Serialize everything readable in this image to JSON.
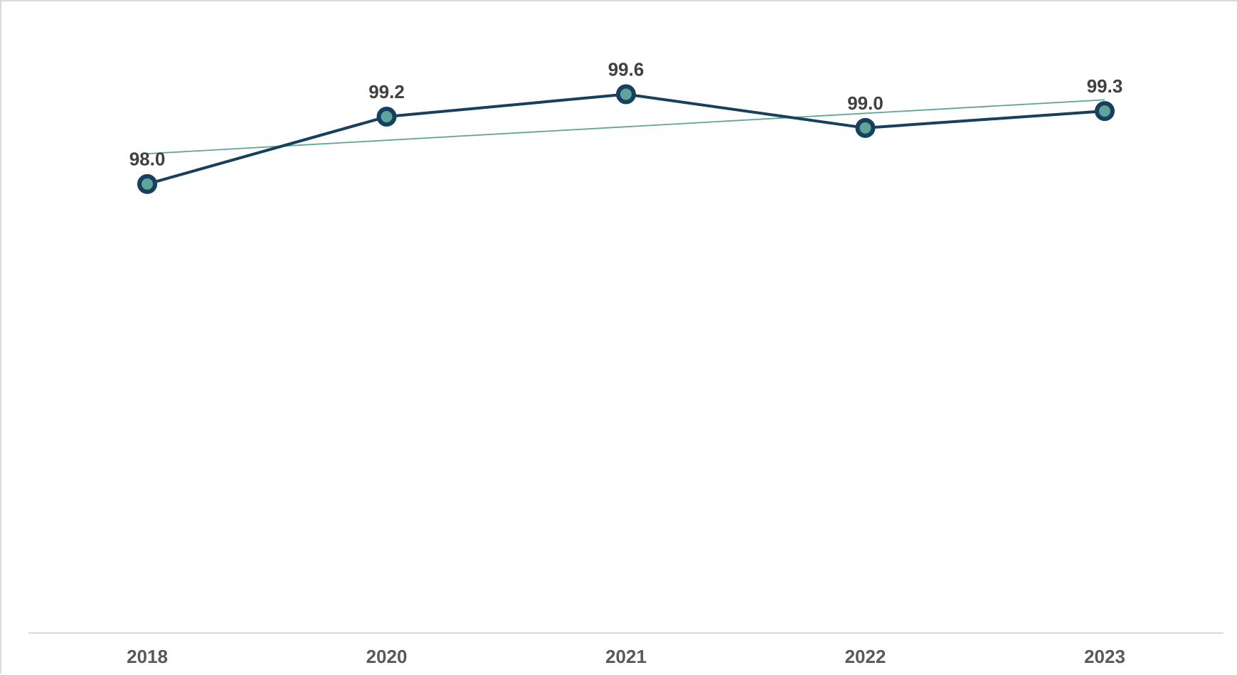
{
  "chart_data": {
    "type": "line",
    "categories": [
      "2018",
      "2020",
      "2021",
      "2022",
      "2023"
    ],
    "series": [
      {
        "values": [
          98.0,
          99.2,
          99.6,
          99.0,
          99.3
        ],
        "data_labels": [
          "98.0",
          "99.2",
          "99.6",
          "99.0",
          "99.3"
        ]
      }
    ],
    "trendline": {
      "type": "linear"
    },
    "ylim": [
      90,
      101
    ],
    "grid": false,
    "legend": "none",
    "title": "",
    "xlabel": "",
    "ylabel": ""
  },
  "colors": {
    "series_line": "#17405f",
    "marker_fill": "#5fa39b",
    "trendline": "#5fa39b",
    "axis_line": "#d9d9d9",
    "data_label": "#404040",
    "tick_label": "#595959"
  }
}
